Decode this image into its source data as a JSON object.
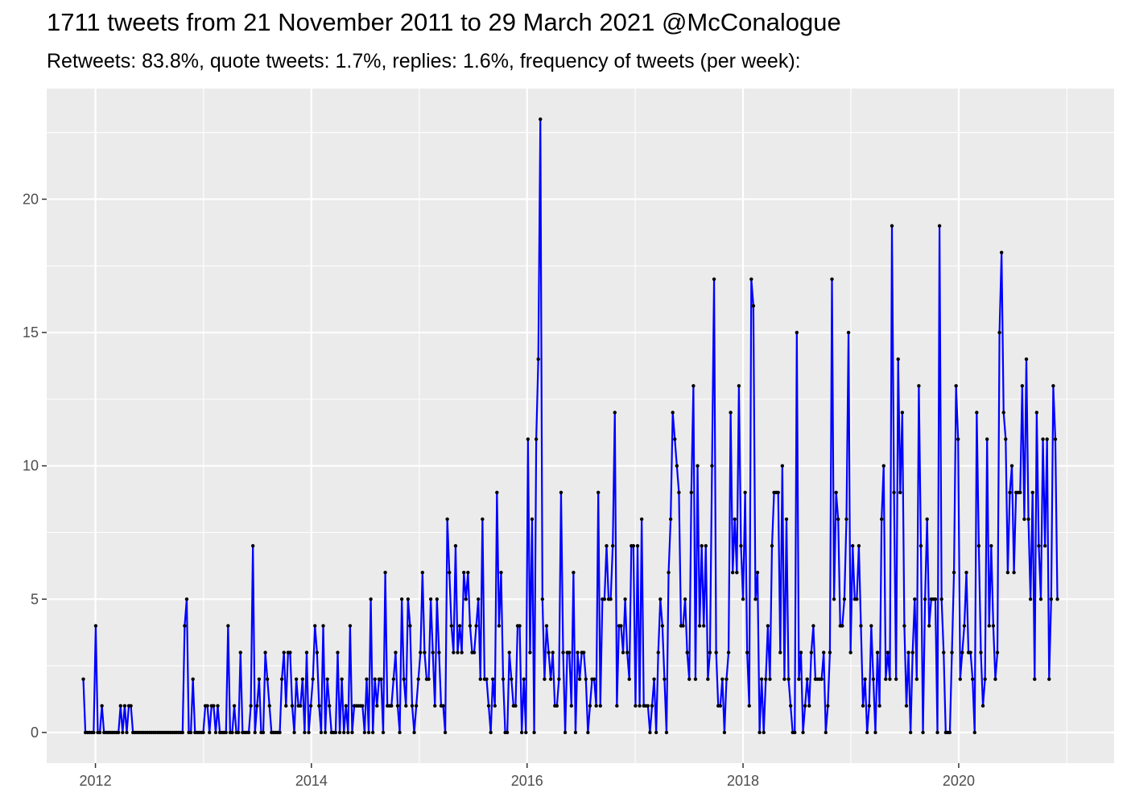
{
  "chart_data": {
    "type": "line",
    "title": "1711 tweets from 21 November 2011 to 29 March 2021 @McConalogue",
    "subtitle": "Retweets: 83.8%, quote tweets: 1.7%, replies: 1.6%, frequency of tweets (per week):",
    "xlabel": "",
    "ylabel": "",
    "x_range": [
      "2011-07-20",
      "2021-06-10"
    ],
    "ylim": [
      -1.15,
      24.15
    ],
    "x_ticks": [
      "2012",
      "2014",
      "2016",
      "2018",
      "2020"
    ],
    "y_ticks": [
      "0",
      "5",
      "10",
      "15",
      "20"
    ],
    "grid": true,
    "line_color": "#0000ff",
    "point_color": "#000000",
    "panel_color": "#ebebeb",
    "series": [
      {
        "start_date": "2011-11-21",
        "interval": "week",
        "values": [
          2,
          0,
          0,
          0,
          0,
          0,
          4,
          0,
          0,
          1,
          0,
          0,
          0,
          0,
          0,
          0,
          0,
          0,
          1,
          0,
          1,
          0,
          1,
          1,
          0,
          0,
          0,
          0,
          0,
          0,
          0,
          0,
          0,
          0,
          0,
          0,
          0,
          0,
          0,
          0,
          0,
          0,
          0,
          0,
          0,
          0,
          0,
          0,
          0,
          4,
          5,
          0,
          0,
          2,
          0,
          0,
          0,
          0,
          0,
          1,
          1,
          0,
          1,
          1,
          0,
          1,
          0,
          0,
          0,
          0,
          4,
          0,
          0,
          1,
          0,
          0,
          3,
          0,
          0,
          0,
          0,
          1,
          7,
          0,
          1,
          2,
          0,
          0,
          3,
          2,
          1,
          0,
          0,
          0,
          0,
          0,
          2,
          3,
          1,
          3,
          3,
          1,
          0,
          2,
          1,
          1,
          2,
          0,
          3,
          0,
          1,
          2,
          4,
          3,
          1,
          0,
          4,
          0,
          2,
          1,
          0,
          0,
          0,
          3,
          0,
          2,
          0,
          1,
          0,
          4,
          0,
          1,
          1,
          1,
          1,
          1,
          0,
          2,
          0,
          5,
          0,
          2,
          1,
          2,
          2,
          0,
          6,
          1,
          1,
          1,
          2,
          3,
          1,
          0,
          5,
          2,
          1,
          5,
          4,
          1,
          0,
          1,
          2,
          3,
          6,
          3,
          2,
          2,
          5,
          3,
          1,
          5,
          3,
          1,
          1,
          0,
          8,
          6,
          4,
          3,
          7,
          3,
          4,
          3,
          6,
          5,
          6,
          4,
          3,
          3,
          4,
          5,
          2,
          8,
          2,
          2,
          1,
          0,
          2,
          1,
          9,
          4,
          6,
          2,
          0,
          0,
          3,
          2,
          1,
          1,
          4,
          4,
          0,
          2,
          0,
          11,
          3,
          8,
          0,
          11,
          14,
          23,
          5,
          2,
          4,
          3,
          2,
          3,
          1,
          1,
          2,
          9,
          3,
          0,
          3,
          3,
          1,
          6,
          0,
          3,
          2,
          3,
          3,
          2,
          0,
          1,
          2,
          2,
          1,
          9,
          1,
          5,
          5,
          7,
          5,
          5,
          7,
          12,
          1,
          4,
          4,
          3,
          5,
          3,
          2,
          7,
          7,
          1,
          7,
          1,
          8,
          1,
          1,
          1,
          0,
          1,
          2,
          0,
          3,
          5,
          4,
          2,
          0,
          6,
          8,
          12,
          11,
          10,
          9,
          4,
          4,
          5,
          3,
          2,
          9,
          13,
          2,
          10,
          4,
          7,
          4,
          7,
          2,
          3,
          10,
          17,
          3,
          1,
          1,
          2,
          0,
          2,
          3,
          12,
          6,
          8,
          6,
          13,
          7,
          5,
          9,
          3,
          1,
          17,
          16,
          5,
          6,
          0,
          2,
          0,
          2,
          4,
          2,
          7,
          9,
          9,
          9,
          3,
          10,
          2,
          8,
          2,
          1,
          0,
          0,
          15,
          2,
          3,
          0,
          1,
          2,
          1,
          3,
          4,
          2,
          2,
          2,
          2,
          3,
          0,
          1,
          3,
          17,
          5,
          9,
          8,
          4,
          4,
          5,
          8,
          15,
          3,
          7,
          5,
          5,
          7,
          4,
          1,
          2,
          0,
          1,
          4,
          2,
          0,
          3,
          1,
          8,
          10,
          2,
          3,
          2,
          19,
          9,
          2,
          14,
          9,
          12,
          4,
          1,
          3,
          0,
          3,
          5,
          2,
          13,
          7,
          0,
          5,
          8,
          4,
          5,
          5,
          5,
          0,
          19,
          5,
          3,
          0,
          0,
          0,
          3,
          6,
          13,
          11,
          2,
          3,
          4,
          6,
          3,
          3,
          2,
          0,
          12,
          7,
          3,
          1,
          2,
          11,
          4,
          7,
          4,
          2,
          3,
          15,
          18,
          12,
          11,
          6,
          9,
          10,
          6,
          9,
          9,
          9,
          13,
          8,
          14,
          8,
          5,
          9,
          2,
          12,
          7,
          5,
          11,
          7,
          11,
          2,
          5,
          13,
          11,
          5
        ]
      }
    ]
  }
}
